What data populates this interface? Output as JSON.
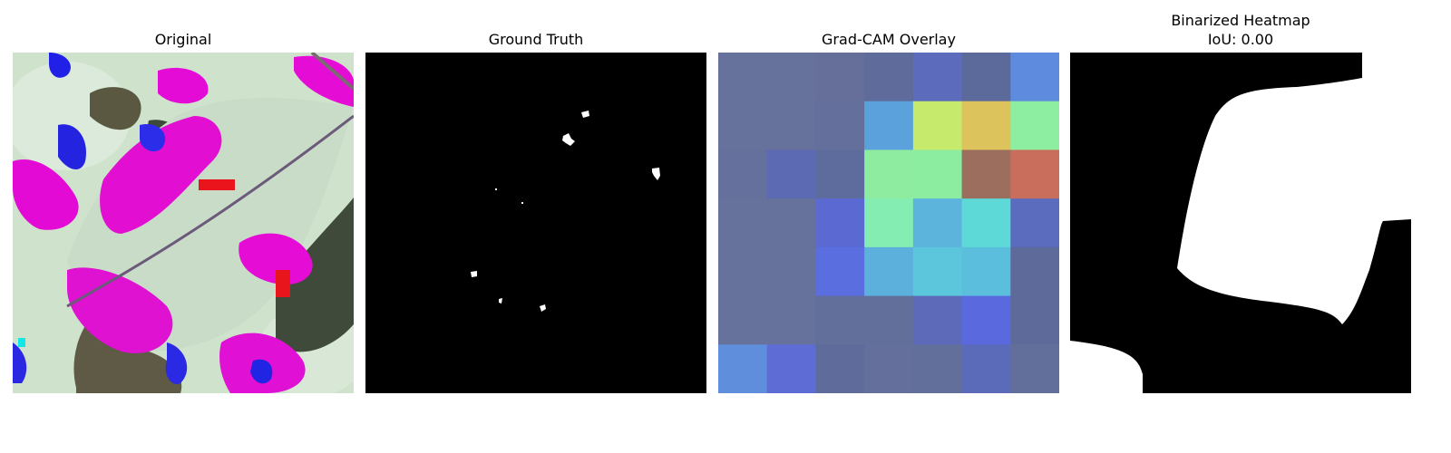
{
  "figure": {
    "panels": [
      {
        "title": "Original",
        "content": "leaf photo with magenta, blue and cyan color-mapped regions"
      },
      {
        "title": "Ground Truth",
        "content": "black mask with small white spots"
      },
      {
        "title": "Grad-CAM Overlay",
        "content": "7x7 heatmap overlay"
      },
      {
        "title": "Binarized Heatmap",
        "subtitle": "IoU: 0.00",
        "content": "black background with large white region"
      }
    ]
  },
  "gradcam_grid": [
    [
      "#66729c",
      "#66729c",
      "#656f9a",
      "#5f6b9a",
      "#5d6bbd",
      "#5c6a9b",
      "#5e8bdd"
    ],
    [
      "#66729c",
      "#66729c",
      "#646f9b",
      "#5ba2dc",
      "#c5ea6c",
      "#dcc35c",
      "#8deda0"
    ],
    [
      "#65719c",
      "#5b6ab2",
      "#5e6b9d",
      "#8eeca0",
      "#8ceca0",
      "#9b6e5d",
      "#c96e5d"
    ],
    [
      "#66729c",
      "#66729c",
      "#5b6ad2",
      "#84edb1",
      "#5cb4dc",
      "#5dd9d8",
      "#5b6bbd"
    ],
    [
      "#66729c",
      "#66729c",
      "#5b6ee0",
      "#5cb1dc",
      "#5cc7dc",
      "#5cbedd",
      "#5e6b9a"
    ],
    [
      "#66729c",
      "#66729c",
      "#636f9b",
      "#636f9b",
      "#5c6ab9",
      "#5b69de",
      "#5e6b9a"
    ],
    [
      "#5f8fdc",
      "#5e6cd6",
      "#5f6c9b",
      "#646f9b",
      "#636f9b",
      "#5c6bb9",
      "#636f9b"
    ]
  ]
}
